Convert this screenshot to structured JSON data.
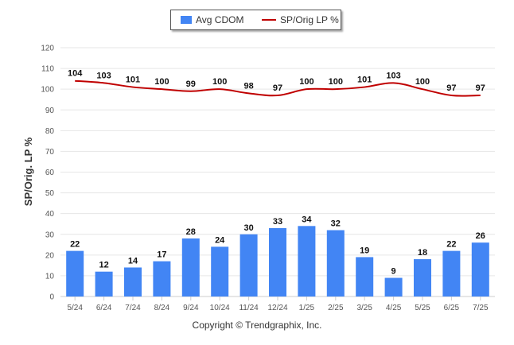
{
  "legend": {
    "bar_label": "Avg CDOM",
    "line_label": "SP/Orig LP %"
  },
  "footer": {
    "copyright": "Copyright © Trendgraphix, Inc."
  },
  "colors": {
    "bar": "#4285f4",
    "line": "#c00000",
    "grid": "#e6e6e6",
    "axis_text": "#555555"
  },
  "chart_data": {
    "type": "bar",
    "categories": [
      "5/24",
      "6/24",
      "7/24",
      "8/24",
      "9/24",
      "10/24",
      "11/24",
      "12/24",
      "1/25",
      "2/25",
      "3/25",
      "4/25",
      "5/25",
      "6/25",
      "7/25"
    ],
    "series": [
      {
        "name": "Avg CDOM",
        "type": "bar",
        "values": [
          22,
          12,
          14,
          17,
          28,
          24,
          30,
          33,
          34,
          32,
          19,
          9,
          18,
          22,
          26
        ]
      },
      {
        "name": "SP/Orig LP %",
        "type": "line",
        "values": [
          104,
          103,
          101,
          100,
          99,
          100,
          98,
          97,
          100,
          100,
          101,
          103,
          100,
          97,
          97
        ]
      }
    ],
    "ylabel": "SP/Orig. LP %",
    "ylim": [
      0,
      120
    ],
    "yticks": [
      0,
      10,
      20,
      30,
      40,
      50,
      60,
      70,
      80,
      90,
      100,
      110,
      120
    ],
    "grid": true,
    "legend_position": "top-center"
  }
}
